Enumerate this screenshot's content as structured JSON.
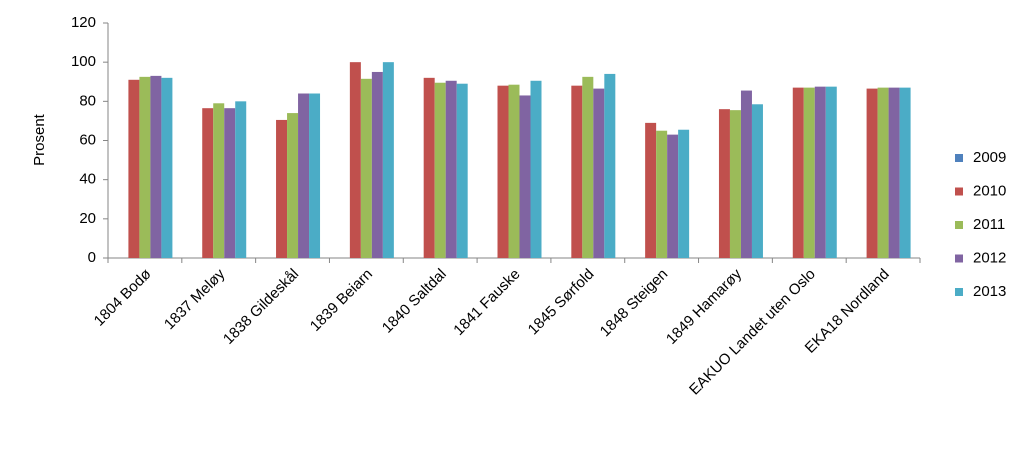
{
  "chart_data": {
    "type": "bar",
    "y_label": "Prosent",
    "categories": [
      "1804 Bodø",
      "1837 Meløy",
      "1838 Gildeskål",
      "1839 Beiarn",
      "1840 Saltdal",
      "1841 Fauske",
      "1845 Sørfold",
      "1848 Steigen",
      "1849 Hamarøy",
      "EAKUO Landet uten Oslo",
      "EKA18 Nordland"
    ],
    "series": [
      {
        "name": "2009",
        "color": "#4f81bd",
        "values": [
          null,
          null,
          null,
          null,
          null,
          null,
          null,
          null,
          null,
          null,
          null
        ]
      },
      {
        "name": "2010",
        "color": "#c0504d",
        "values": [
          91,
          76.5,
          70.5,
          100,
          92,
          88,
          88,
          69,
          76,
          87,
          86.5
        ]
      },
      {
        "name": "2011",
        "color": "#9bbb59",
        "values": [
          92.5,
          79,
          74,
          91.5,
          89.5,
          88.5,
          92.5,
          65,
          75.5,
          87,
          87
        ]
      },
      {
        "name": "2012",
        "color": "#8064a2",
        "values": [
          93,
          76.5,
          84,
          95,
          90.5,
          83,
          86.5,
          63,
          85.5,
          87.5,
          87
        ]
      },
      {
        "name": "2013",
        "color": "#4bacc6",
        "values": [
          92,
          80,
          84,
          100,
          89,
          90.5,
          94,
          65.5,
          78.5,
          87.5,
          87
        ]
      }
    ],
    "ylim": [
      0,
      120
    ],
    "yticks": [
      0,
      20,
      40,
      60,
      80,
      100,
      120
    ],
    "grid": false,
    "legend": "right"
  }
}
